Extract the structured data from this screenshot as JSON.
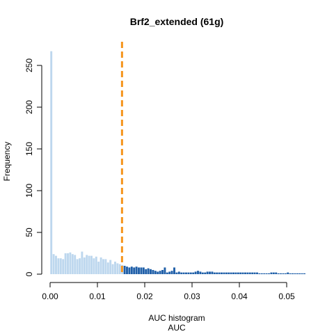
{
  "chart_data": {
    "type": "bar",
    "title": "Brf2_extended (61g)",
    "xlabel": "AUC",
    "xlabel_top": "AUC histogram",
    "ylabel": "Frequency",
    "xlim": [
      0.0,
      0.054
    ],
    "ylim": [
      0,
      270
    ],
    "bin_width": 0.0005,
    "threshold": 0.0152,
    "x_ticks": [
      "0.00",
      "0.01",
      "0.02",
      "0.03",
      "0.04",
      "0.05"
    ],
    "y_ticks": [
      "0",
      "50",
      "100",
      "150",
      "200",
      "250"
    ],
    "colors": {
      "below_threshold": "#bdd7ee",
      "above_threshold": "#1f5fa8",
      "threshold_line": "#f5951d"
    },
    "values": [
      267,
      24,
      22,
      19,
      19,
      18,
      25,
      25,
      26,
      24,
      23,
      18,
      19,
      27,
      20,
      23,
      22,
      22,
      19,
      21,
      15,
      20,
      18,
      18,
      14,
      17,
      12,
      15,
      13,
      12,
      11,
      10,
      9,
      8,
      9,
      8,
      9,
      8,
      8,
      8,
      6,
      7,
      6,
      5,
      4,
      3,
      4,
      5,
      8,
      2,
      3,
      4,
      8,
      2,
      3,
      2,
      2,
      2,
      2,
      2,
      2,
      3,
      4,
      3,
      2,
      2,
      3,
      3,
      3,
      2,
      2,
      2,
      2,
      2,
      2,
      2,
      2,
      2,
      2,
      2,
      2,
      2,
      2,
      2,
      2,
      2,
      2,
      2,
      1,
      1,
      1,
      1,
      1,
      2,
      2,
      2,
      1,
      1,
      1,
      1,
      2,
      1,
      1,
      1,
      1,
      1,
      1,
      1
    ]
  }
}
